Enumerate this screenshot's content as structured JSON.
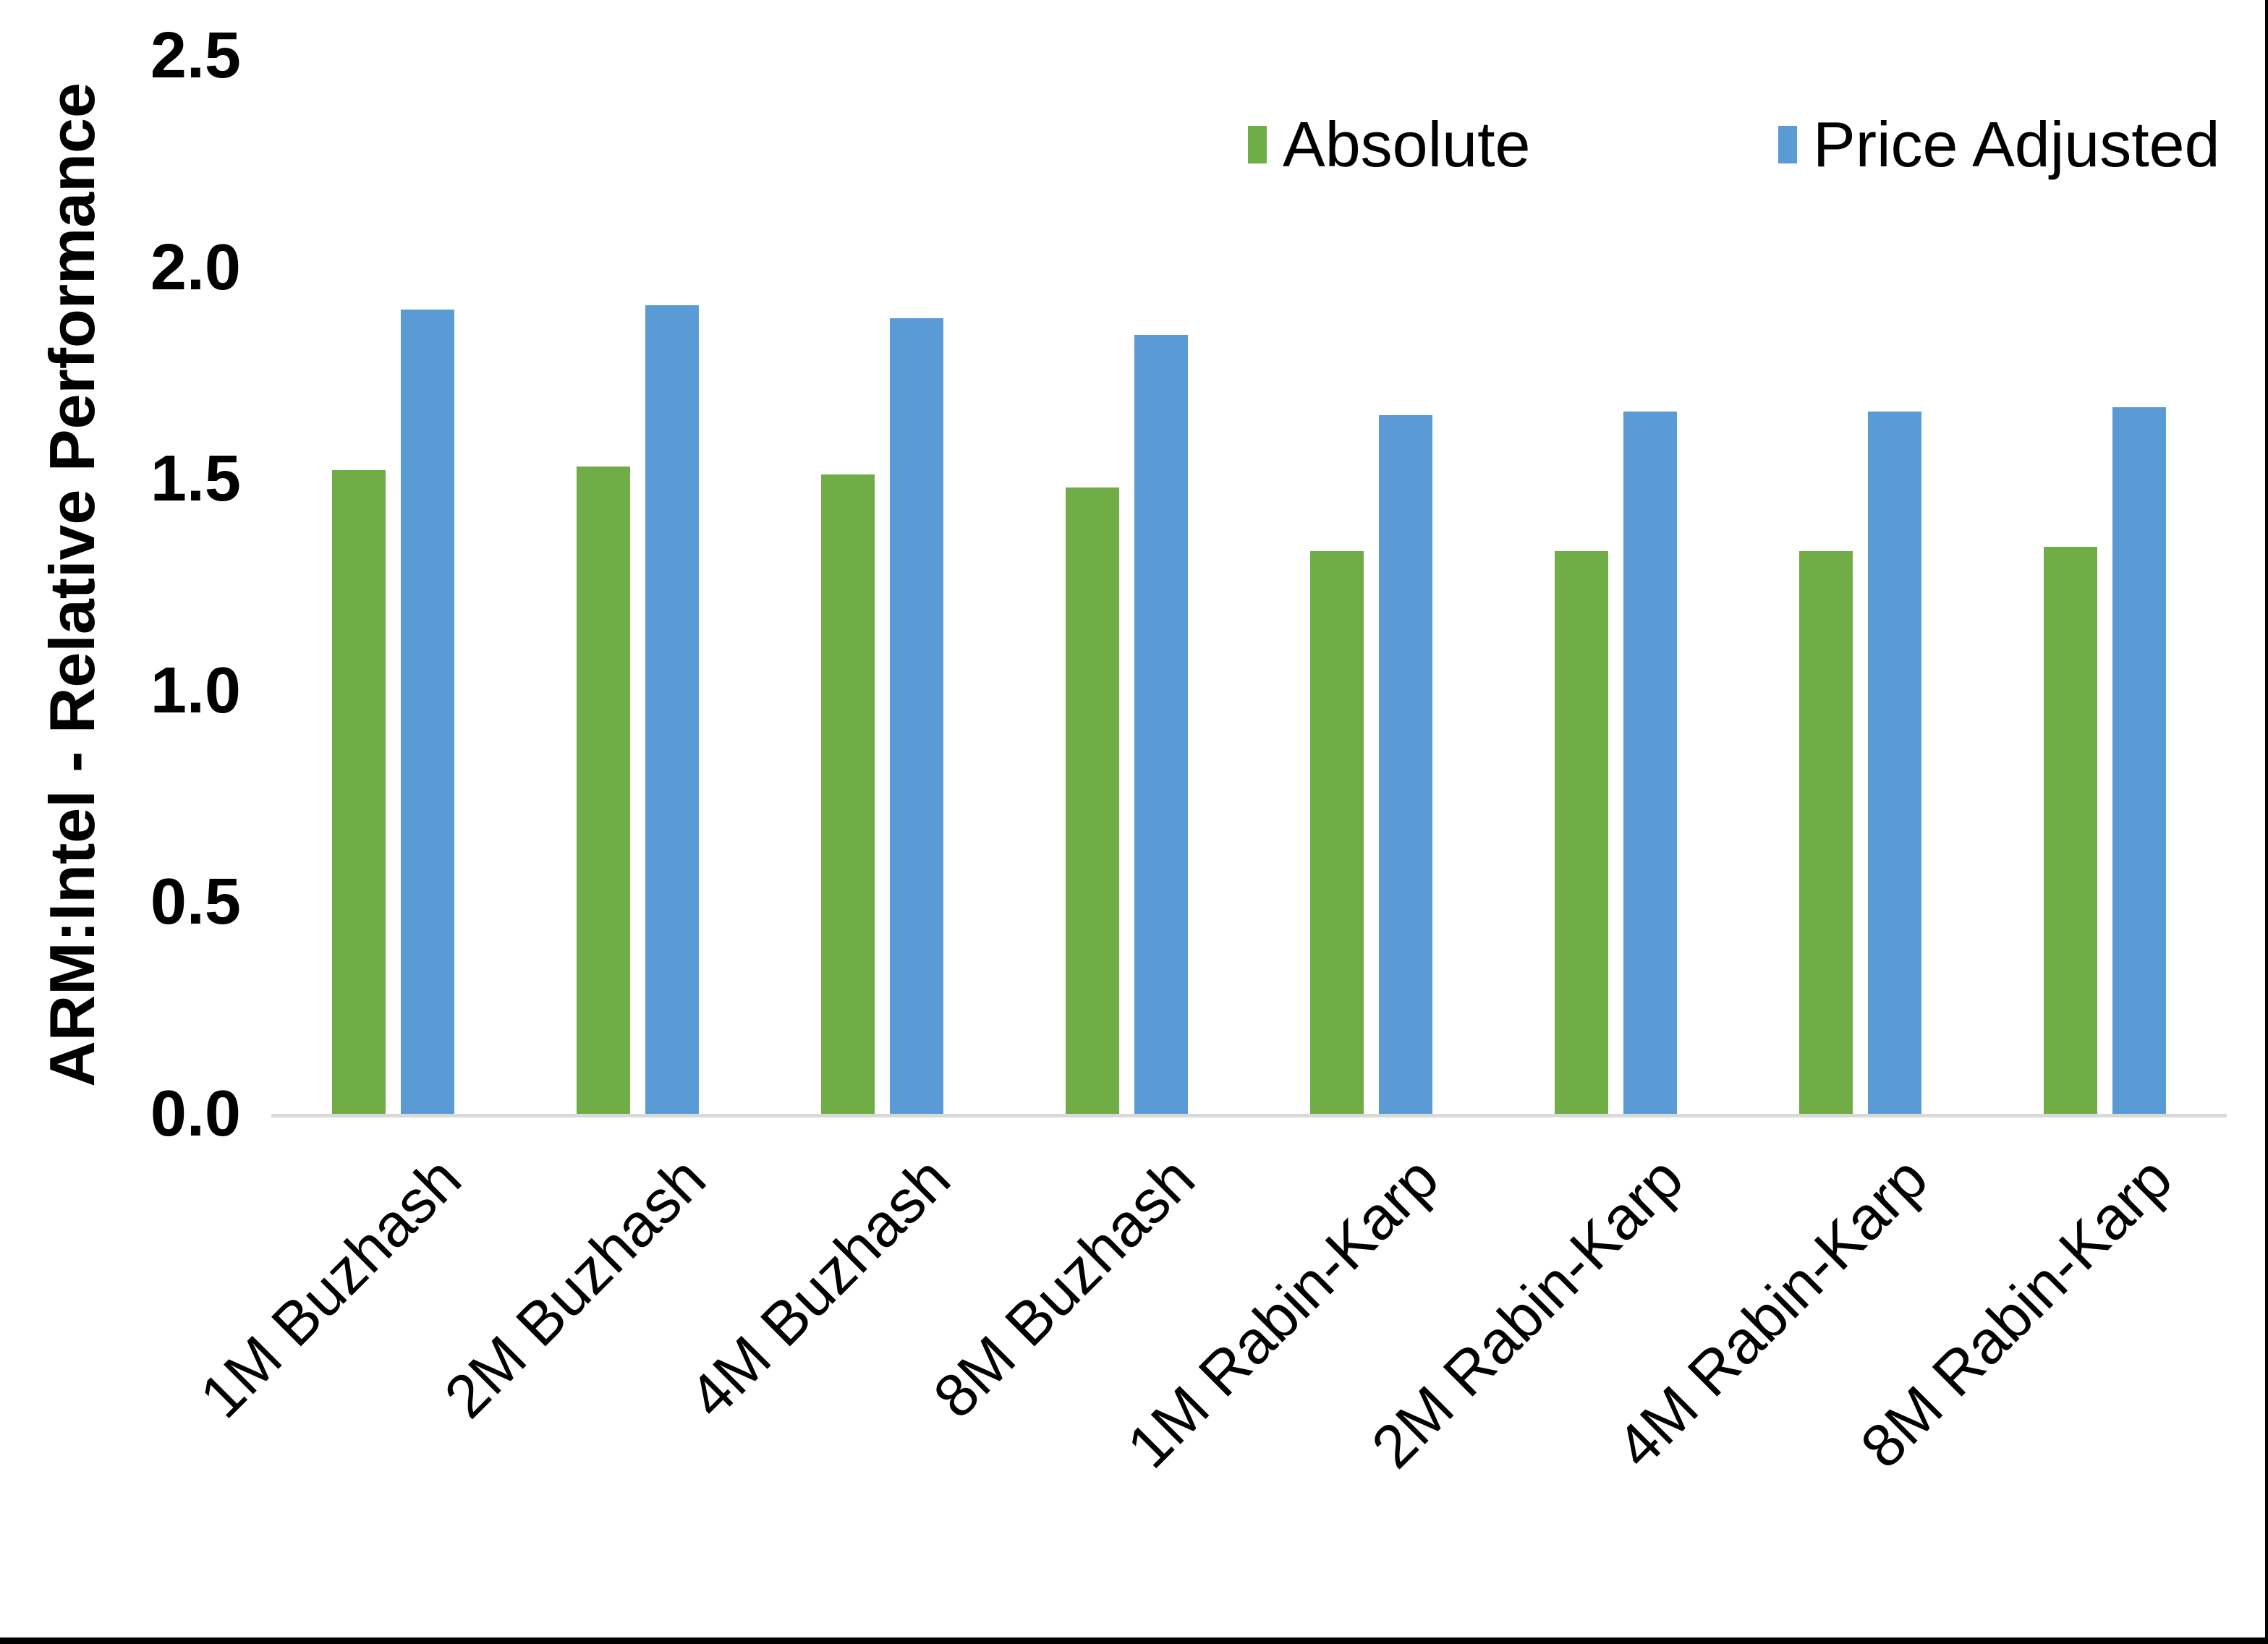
{
  "chart_data": {
    "type": "bar",
    "title": "",
    "xlabel": "",
    "ylabel": "ARM:Intel - Relative Performance",
    "ylim": [
      0,
      2.5
    ],
    "ytick_labels": [
      "0.0",
      "0.5",
      "1.0",
      "1.5",
      "2.0",
      "2.5"
    ],
    "yticks": [
      0.0,
      0.5,
      1.0,
      1.5,
      2.0,
      2.5
    ],
    "grid": false,
    "legend_position": "top-right",
    "categories": [
      "1M Buzhash",
      "2M Buzhash",
      "4M Buzhash",
      "8M Buzhash",
      "1M Rabin-Karp",
      "2M Rabin-Karp",
      "4M Rabin-Karp",
      "8M Rabin-Karp"
    ],
    "series": [
      {
        "name": "Absolute",
        "color": "#70AD47",
        "values": [
          1.52,
          1.53,
          1.51,
          1.48,
          1.33,
          1.33,
          1.33,
          1.34
        ]
      },
      {
        "name": "Price Adjusted",
        "color": "#5B9BD5",
        "values": [
          1.9,
          1.91,
          1.88,
          1.84,
          1.65,
          1.66,
          1.66,
          1.67
        ]
      }
    ]
  },
  "legend": {
    "items": [
      {
        "label": "Absolute",
        "color": "#70AD47"
      },
      {
        "label": "Price Adjusted",
        "color": "#5B9BD5"
      }
    ]
  },
  "colors": {
    "absolute": "#70AD47",
    "price_adjusted": "#5B9BD5",
    "axis_line": "#D9D9D9",
    "text": "#000000",
    "background": "#FFFFFF",
    "border": "#000000"
  }
}
